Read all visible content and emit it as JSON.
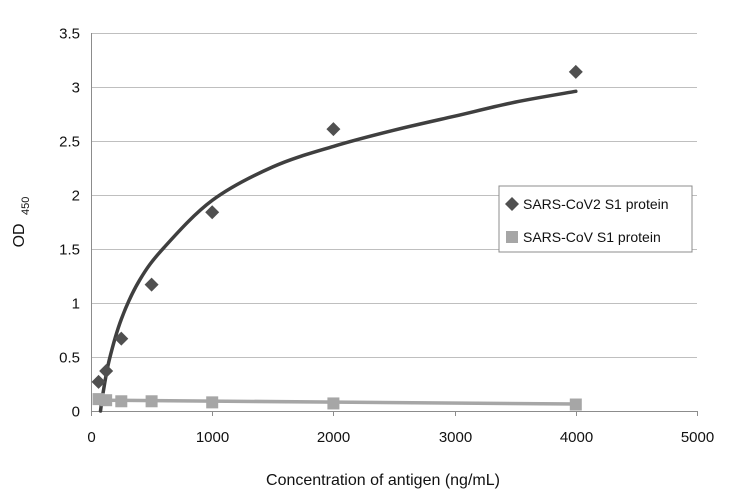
{
  "chart_data": {
    "type": "scatter",
    "title": "",
    "xlabel": "Concentration of antigen (ng/mL)",
    "ylabel_main": "OD",
    "ylabel_sub": "450",
    "xlim": [
      0,
      5000
    ],
    "ylim": [
      0,
      3.5
    ],
    "xticks": [
      0,
      1000,
      2000,
      3000,
      4000,
      5000
    ],
    "yticks": [
      0,
      0.5,
      1,
      1.5,
      2,
      2.5,
      3,
      3.5
    ],
    "xtick_labels": [
      "0",
      "1000",
      "2000",
      "3000",
      "4000",
      "5000"
    ],
    "ytick_labels": [
      "0",
      "0.5",
      "1",
      "1.5",
      "2",
      "2.5",
      "3",
      "3.5"
    ],
    "grid": "horizontal",
    "legend_position": "right",
    "series": [
      {
        "name": "SARS-CoV2 S1 protein",
        "marker": "diamond",
        "color": "#505050",
        "x": [
          62.5,
          125,
          250,
          500,
          1000,
          2000,
          4000
        ],
        "y": [
          0.27,
          0.37,
          0.67,
          1.17,
          1.84,
          2.61,
          3.14
        ],
        "trendline": {
          "type": "logarithmic",
          "color": "#3f3f3f",
          "points": [
            [
              78,
              0.0
            ],
            [
              100,
              0.17
            ],
            [
              150,
              0.47
            ],
            [
              250,
              0.85
            ],
            [
              400,
              1.21
            ],
            [
              600,
              1.51
            ],
            [
              1000,
              1.95
            ],
            [
              1500,
              2.26
            ],
            [
              2000,
              2.45
            ],
            [
              2500,
              2.6
            ],
            [
              3000,
              2.73
            ],
            [
              3500,
              2.86
            ],
            [
              4000,
              2.96
            ]
          ]
        }
      },
      {
        "name": "SARS-CoV S1 protein",
        "marker": "square",
        "color": "#a6a6a6",
        "x": [
          62.5,
          125,
          250,
          500,
          1000,
          2000,
          4000
        ],
        "y": [
          0.11,
          0.1,
          0.09,
          0.09,
          0.08,
          0.07,
          0.06
        ],
        "trendline": {
          "type": "linear",
          "color": "#a6a6a6",
          "points": [
            [
              62.5,
              0.1
            ],
            [
              4000,
              0.065
            ]
          ]
        }
      }
    ]
  }
}
